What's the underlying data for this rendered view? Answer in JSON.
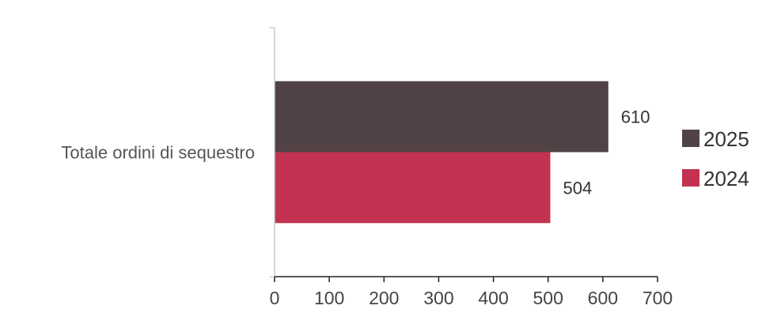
{
  "chart_data": {
    "type": "bar",
    "orientation": "horizontal",
    "categories": [
      "Totale ordini di sequestro"
    ],
    "series": [
      {
        "name": "2025",
        "values": [
          610
        ],
        "color": "#514345"
      },
      {
        "name": "2024",
        "values": [
          504
        ],
        "color": "#C43252"
      }
    ],
    "xlim": [
      0,
      700
    ],
    "xticks": [
      0,
      100,
      200,
      300,
      400,
      500,
      600,
      700
    ],
    "data_labels": [
      "610",
      "504"
    ],
    "grid": false,
    "legend_position": "right"
  }
}
